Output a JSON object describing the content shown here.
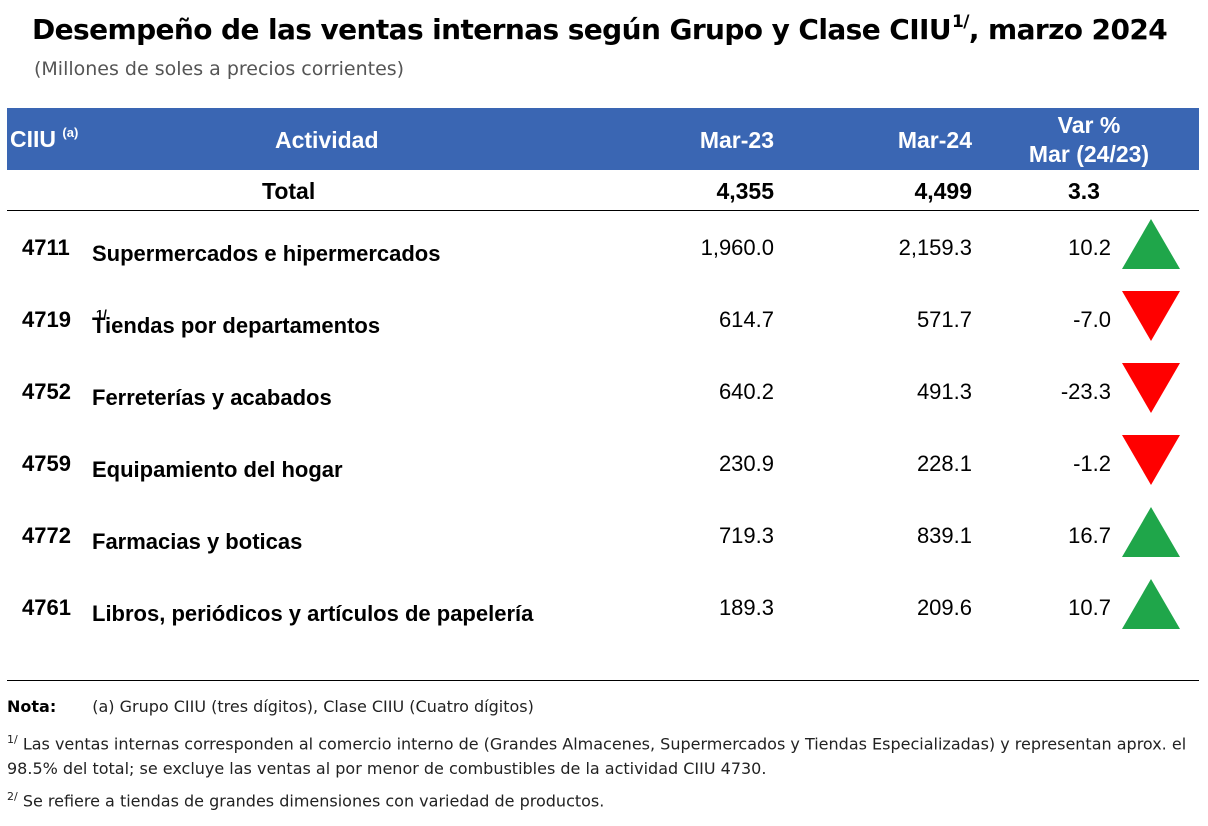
{
  "title": "Desempeño de las ventas internas según Grupo y Clase CIIU",
  "title_sup": "1/",
  "title_suffix": ", marzo 2024",
  "subtitle": "(Millones de soles a precios corrientes)",
  "header": {
    "ciiu": "CIIU",
    "ciiu_sup": "(a)",
    "actividad": "Actividad",
    "mar23": "Mar-23",
    "mar24": "Mar-24",
    "var_line1": "Var %",
    "var_line2": "Mar (24/23)"
  },
  "total": {
    "label": "Total",
    "mar23": "4,355",
    "mar24": "4,499",
    "var": "3.3"
  },
  "rows": [
    {
      "code": "4711",
      "name": "Supermercados  e hipermercados",
      "sup": "",
      "mar23": "1,960.0",
      "mar24": "2,159.3",
      "var": "10.2",
      "trend": "up"
    },
    {
      "code": "4719",
      "name": "Tiendas por departamentos",
      "sup": "1/",
      "mar23": "614.7",
      "mar24": "571.7",
      "var": "-7.0",
      "trend": "down"
    },
    {
      "code": "4752",
      "name": "Ferreterías y acabados",
      "sup": "",
      "mar23": "640.2",
      "mar24": "491.3",
      "var": "-23.3",
      "trend": "down"
    },
    {
      "code": "4759",
      "name": "Equipamiento del hogar",
      "sup": "",
      "mar23": "230.9",
      "mar24": "228.1",
      "var": "-1.2",
      "trend": "down"
    },
    {
      "code": "4772",
      "name": "Farmacias y boticas",
      "sup": "",
      "mar23": "719.3",
      "mar24": "839.1",
      "var": "16.7",
      "trend": "up"
    },
    {
      "code": "4761",
      "name": "Libros, periódicos y artículos de papelería",
      "sup": "",
      "mar23": "189.3",
      "mar24": "209.6",
      "var": "10.7",
      "trend": "up"
    }
  ],
  "colors": {
    "header_bg": "#3a66b3",
    "up": "#1fa64a",
    "down": "#ff0000"
  },
  "notes": {
    "label": "Nota:",
    "a": "(a) Grupo CIIU (tres dígitos), Clase CIIU (Cuatro dígitos)",
    "n1_sup": "1/",
    "n1": "Las ventas internas corresponden al comercio interno de (Grandes Almacenes, Supermercados y Tiendas Especializadas) y representan aprox. el 98.5% del total; se excluye las ventas al por menor de combustibles de la actividad CIIU 4730.",
    "n2_sup": "2/",
    "n2": "Se refiere a tiendas de grandes dimensiones con variedad de productos."
  }
}
